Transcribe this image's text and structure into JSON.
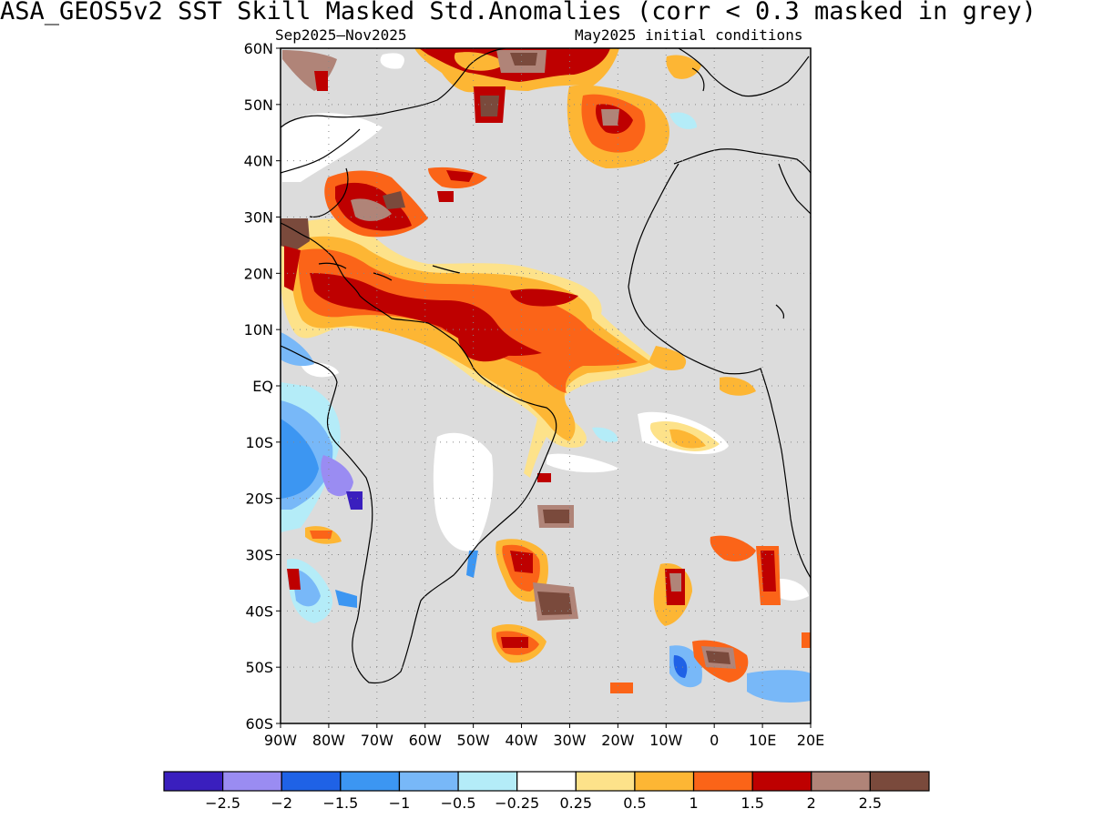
{
  "title": "ASA_GEOS5v2   SST Skill Masked Std.Anomalies (corr < 0.3 masked in grey)",
  "subtitle_left": "Sep2025–Nov2025",
  "subtitle_right": "May2025 initial conditions",
  "map": {
    "lon_range": [
      -90,
      20
    ],
    "lat_range": [
      -60,
      60
    ],
    "mask_color": "#dcdcdc",
    "lat_labels": [
      {
        "lat": 60,
        "label": "60N"
      },
      {
        "lat": 50,
        "label": "50N"
      },
      {
        "lat": 40,
        "label": "40N"
      },
      {
        "lat": 30,
        "label": "30N"
      },
      {
        "lat": 20,
        "label": "20N"
      },
      {
        "lat": 10,
        "label": "10N"
      },
      {
        "lat": 0,
        "label": "EQ"
      },
      {
        "lat": -10,
        "label": "10S"
      },
      {
        "lat": -20,
        "label": "20S"
      },
      {
        "lat": -30,
        "label": "30S"
      },
      {
        "lat": -40,
        "label": "40S"
      },
      {
        "lat": -50,
        "label": "50S"
      },
      {
        "lat": -60,
        "label": "60S"
      }
    ],
    "lon_labels": [
      {
        "lon": -90,
        "label": "90W"
      },
      {
        "lon": -80,
        "label": "80W"
      },
      {
        "lon": -70,
        "label": "70W"
      },
      {
        "lon": -60,
        "label": "60W"
      },
      {
        "lon": -50,
        "label": "50W"
      },
      {
        "lon": -40,
        "label": "40W"
      },
      {
        "lon": -30,
        "label": "30W"
      },
      {
        "lon": -20,
        "label": "20W"
      },
      {
        "lon": -10,
        "label": "10W"
      },
      {
        "lon": 0,
        "label": "0"
      },
      {
        "lon": 10,
        "label": "10E"
      },
      {
        "lon": 20,
        "label": "20E"
      }
    ]
  },
  "colorbar": {
    "colors": [
      "#3a1fbe",
      "#9a8cf2",
      "#1f62e6",
      "#3c96f2",
      "#78b8f8",
      "#b4ecf8",
      "#ffffff",
      "#fde28a",
      "#fdb634",
      "#fb6418",
      "#be0000",
      "#b08478",
      "#7a4a3c"
    ],
    "labels": [
      "−2.5",
      "−2",
      "−1.5",
      "−1",
      "−0.5",
      "−0.25",
      "0.25",
      "0.5",
      "1",
      "1.5",
      "2",
      "2.5"
    ]
  }
}
